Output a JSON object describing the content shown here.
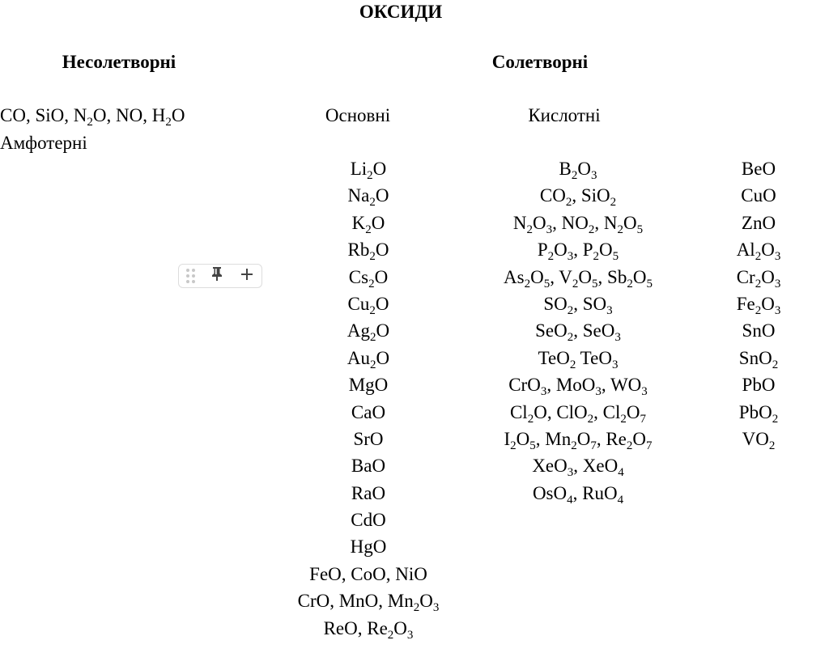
{
  "title": "ОКСИДИ",
  "headers": {
    "non_salt": "Несолетворні",
    "salt": "Солетворні"
  },
  "non_salt_forming": "CO, SiO, N2O, NO, H2O",
  "subheaders": {
    "basic": "Основні",
    "acidic": "Кислотні",
    "amphoteric": "Амфотерні"
  },
  "basic": [
    "Li2O",
    "Na2O",
    "K2O",
    "Rb2O",
    "Cs2O",
    "Cu2O",
    "Ag2O",
    "Au2O",
    "MgO",
    "CaO",
    "SrO",
    "BaO",
    "RaO",
    "CdO",
    "HgO",
    "FeO, CoO, NiO",
    "CrO, MnO, Mn2O3",
    "ReO, Re2O3"
  ],
  "acidic": [
    "B2O3",
    "CO2, SiO2",
    "N2O3, NO2, N2O5",
    "P2O3, P2O5",
    "As2O5, V2O5, Sb2O5",
    "SO2, SO3",
    "SeO2, SeO3",
    "TeO2 TeO3",
    "CrO3, MoO3, WO3",
    "Cl2O, ClO2, Cl2O7",
    "I2O5, Mn2O7, Re2O7",
    "XeO3, XeO4",
    "OsO4, RuO4"
  ],
  "amphoteric": [
    "BeO",
    "CuO",
    "ZnO",
    "Al2O3",
    "Cr2O3",
    "Fe2O3",
    "SnO",
    "SnO2",
    "PbO",
    "PbO2",
    "VO2"
  ],
  "toolbar": {
    "icons": [
      "drag-handle-icon",
      "pin-icon",
      "plus-icon"
    ]
  }
}
